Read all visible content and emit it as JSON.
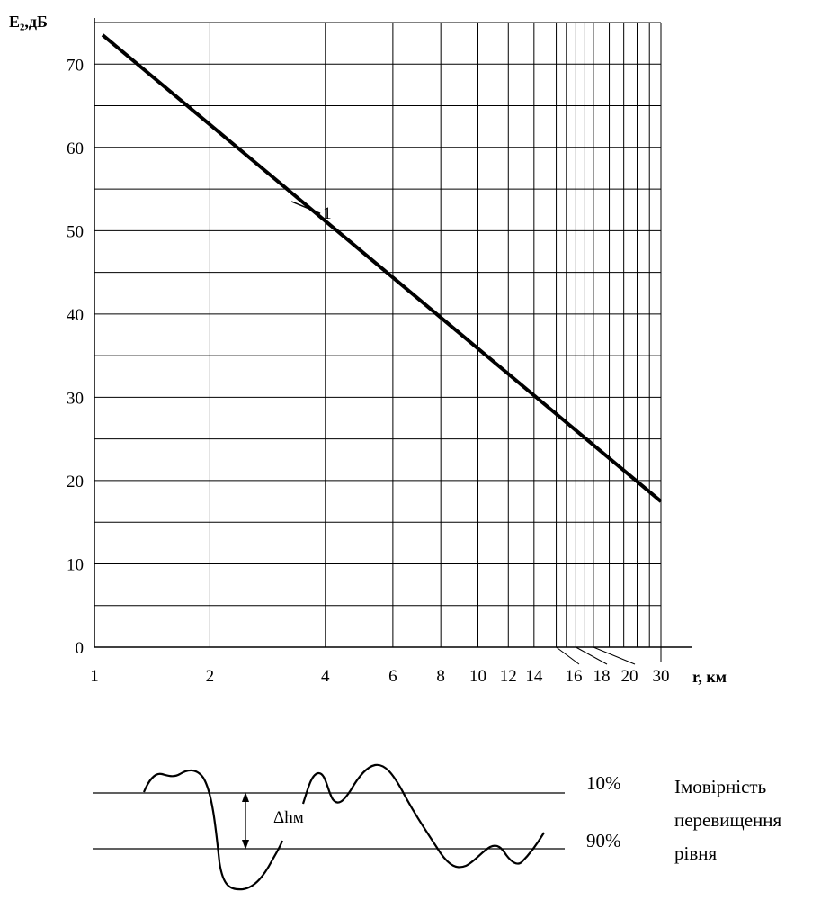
{
  "chart_data": {
    "type": "line",
    "x_scale": "log",
    "grid": true,
    "ylabel": "E₂,дБ",
    "xlabel": "r, км",
    "xlim": [
      1,
      30
    ],
    "ylim": [
      0,
      75
    ],
    "y_ticks": [
      {
        "value": 0,
        "label": "0"
      },
      {
        "value": 10,
        "label": "10"
      },
      {
        "value": 20,
        "label": "20"
      },
      {
        "value": 30,
        "label": "30"
      },
      {
        "value": 40,
        "label": "40"
      },
      {
        "value": 50,
        "label": "50"
      },
      {
        "value": 60,
        "label": "60"
      },
      {
        "value": 70,
        "label": "70"
      }
    ],
    "y_grid": [
      5,
      10,
      15,
      20,
      25,
      30,
      35,
      40,
      45,
      50,
      55,
      60,
      65,
      70,
      75
    ],
    "x_ticks": [
      {
        "value": 1,
        "label": "1"
      },
      {
        "value": 2,
        "label": "2"
      },
      {
        "value": 4,
        "label": "4"
      },
      {
        "value": 6,
        "label": "6"
      },
      {
        "value": 8,
        "label": "8"
      },
      {
        "value": 10,
        "label": "10"
      },
      {
        "value": 12,
        "label": "12"
      },
      {
        "value": 14,
        "label": "14"
      },
      {
        "value": 16,
        "label": "16"
      },
      {
        "value": 18,
        "label": "18"
      },
      {
        "value": 20,
        "label": "20"
      },
      {
        "value": 30,
        "label": "30"
      }
    ],
    "x_grid": [
      1,
      2,
      4,
      6,
      8,
      10,
      12,
      14,
      16,
      17,
      18,
      19,
      20,
      22,
      24,
      26,
      28,
      30
    ],
    "series": [
      {
        "name": "1",
        "x": [
          1.05,
          30
        ],
        "y": [
          73.5,
          17.5
        ]
      }
    ],
    "annotation": {
      "label": "1",
      "x": 3.3,
      "y": 52.5
    }
  },
  "probability_sketch": {
    "levels": [
      {
        "label": "10%"
      },
      {
        "label": "90%"
      }
    ],
    "delta_label": "Δhм",
    "side_caption": [
      "Імовірність",
      "перевищення",
      "рівня"
    ]
  }
}
